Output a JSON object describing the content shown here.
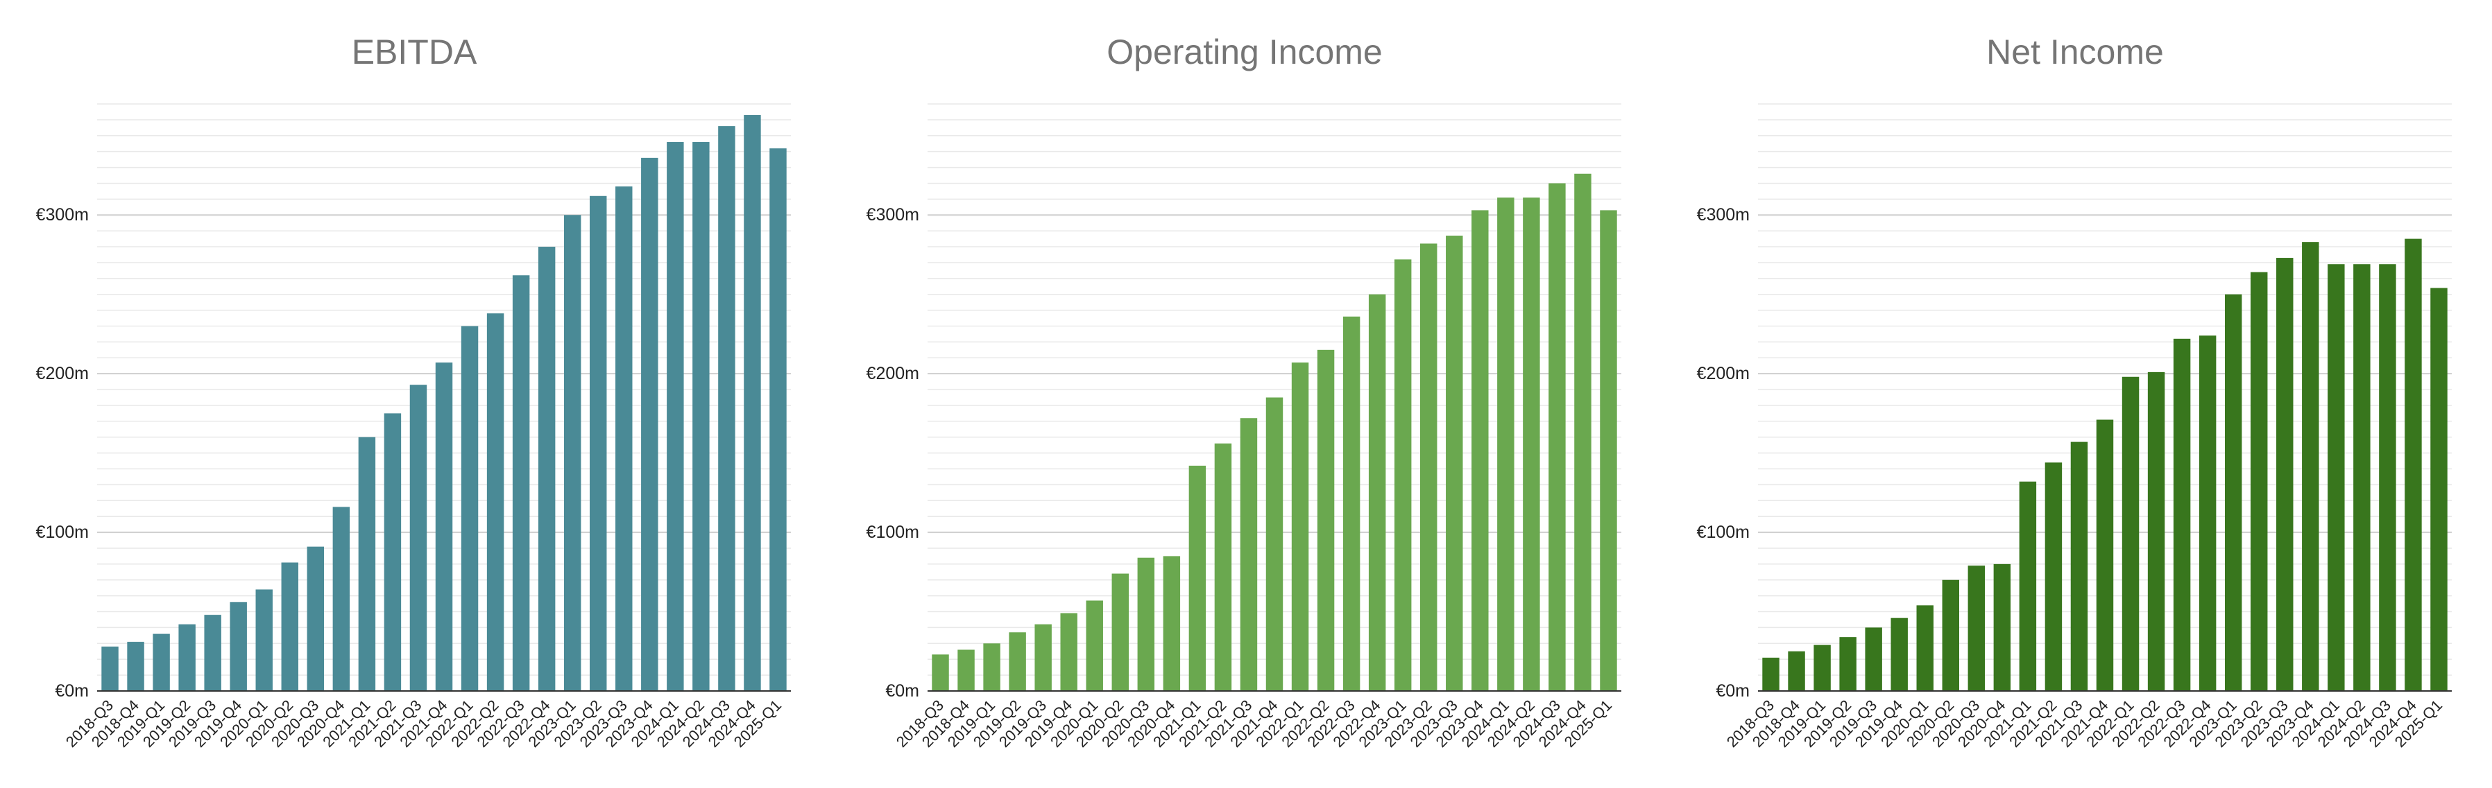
{
  "chart_data": [
    {
      "type": "bar",
      "title": "EBITDA",
      "xlabel": "",
      "ylabel": "",
      "color": "#4a8a96",
      "y_unit_prefix": "€",
      "y_unit_suffix": "m",
      "ylim": [
        0,
        370
      ],
      "yticks": [
        0,
        100,
        200,
        300
      ],
      "ytick_labels": [
        "€0m",
        "€100m",
        "€200m",
        "€300m"
      ],
      "minor_grid_step": 10,
      "grid": true,
      "legend": "none",
      "categories": [
        "2018-Q3",
        "2018-Q4",
        "2019-Q1",
        "2019-Q2",
        "2019-Q3",
        "2019-Q4",
        "2020-Q1",
        "2020-Q2",
        "2020-Q3",
        "2020-Q4",
        "2021-Q1",
        "2021-Q2",
        "2021-Q3",
        "2021-Q4",
        "2022-Q1",
        "2022-Q2",
        "2022-Q3",
        "2022-Q4",
        "2023-Q1",
        "2023-Q2",
        "2023-Q3",
        "2023-Q4",
        "2024-Q1",
        "2024-Q2",
        "2024-Q3",
        "2024-Q4",
        "2025-Q1"
      ],
      "values": [
        28,
        31,
        36,
        42,
        48,
        56,
        64,
        81,
        91,
        116,
        160,
        175,
        193,
        207,
        230,
        238,
        262,
        280,
        300,
        312,
        318,
        336,
        346,
        346,
        356,
        363,
        342
      ]
    },
    {
      "type": "bar",
      "title": "Operating Income",
      "xlabel": "",
      "ylabel": "",
      "color": "#6aa84f",
      "y_unit_prefix": "€",
      "y_unit_suffix": "m",
      "ylim": [
        0,
        370
      ],
      "yticks": [
        0,
        100,
        200,
        300
      ],
      "ytick_labels": [
        "€0m",
        "€100m",
        "€200m",
        "€300m"
      ],
      "minor_grid_step": 10,
      "grid": true,
      "legend": "none",
      "categories": [
        "2018-Q3",
        "2018-Q4",
        "2019-Q1",
        "2019-Q2",
        "2019-Q3",
        "2019-Q4",
        "2020-Q1",
        "2020-Q2",
        "2020-Q3",
        "2020-Q4",
        "2021-Q1",
        "2021-Q2",
        "2021-Q3",
        "2021-Q4",
        "2022-Q1",
        "2022-Q2",
        "2022-Q3",
        "2022-Q4",
        "2023-Q1",
        "2023-Q2",
        "2023-Q3",
        "2023-Q4",
        "2024-Q1",
        "2024-Q2",
        "2024-Q3",
        "2024-Q4",
        "2025-Q1"
      ],
      "values": [
        23,
        26,
        30,
        37,
        42,
        49,
        57,
        74,
        84,
        85,
        142,
        156,
        172,
        185,
        207,
        215,
        236,
        250,
        272,
        282,
        287,
        303,
        311,
        311,
        320,
        326,
        303
      ]
    },
    {
      "type": "bar",
      "title": "Net Income",
      "xlabel": "",
      "ylabel": "",
      "color": "#38761d",
      "y_unit_prefix": "€",
      "y_unit_suffix": "m",
      "ylim": [
        0,
        370
      ],
      "yticks": [
        0,
        100,
        200,
        300
      ],
      "ytick_labels": [
        "€0m",
        "€100m",
        "€200m",
        "€300m"
      ],
      "minor_grid_step": 10,
      "grid": true,
      "legend": "none",
      "categories": [
        "2018-Q3",
        "2018-Q4",
        "2019-Q1",
        "2019-Q2",
        "2019-Q3",
        "2019-Q4",
        "2020-Q1",
        "2020-Q2",
        "2020-Q3",
        "2020-Q4",
        "2021-Q1",
        "2021-Q2",
        "2021-Q3",
        "2021-Q4",
        "2022-Q1",
        "2022-Q2",
        "2022-Q3",
        "2022-Q4",
        "2023-Q1",
        "2023-Q2",
        "2023-Q3",
        "2023-Q4",
        "2024-Q1",
        "2024-Q2",
        "2024-Q3",
        "2024-Q4",
        "2025-Q1"
      ],
      "values": [
        21,
        25,
        29,
        34,
        40,
        46,
        54,
        70,
        79,
        80,
        132,
        144,
        157,
        171,
        198,
        201,
        222,
        224,
        250,
        264,
        273,
        283,
        269,
        269,
        269,
        285,
        254
      ]
    }
  ]
}
